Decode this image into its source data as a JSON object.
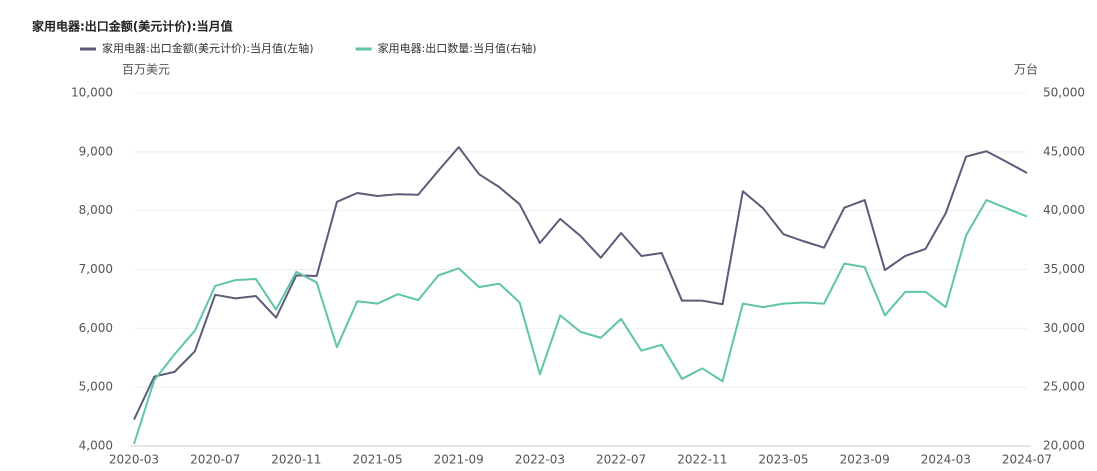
{
  "chart_data": {
    "type": "line",
    "title": "家用电器:出口金额(美元计价):当月值",
    "y_label": "百万美元",
    "y2_label": "万台",
    "categories": [
      "2020-03",
      null,
      null,
      null,
      "2020-07",
      null,
      null,
      null,
      "2020-11",
      null,
      null,
      null,
      "2021-05",
      null,
      null,
      null,
      "2021-09",
      null,
      null,
      null,
      "2022-03",
      null,
      null,
      null,
      "2022-07",
      null,
      null,
      null,
      "2022-11",
      null,
      null,
      null,
      "2023-05",
      null,
      null,
      null,
      "2023-09",
      null,
      null,
      null,
      "2024-03",
      null,
      null,
      null,
      "2024-07"
    ],
    "series": [
      {
        "name": "家用电器:出口金额(美元计价):当月值(左轴)",
        "color": "#5b5d78",
        "axis": "y",
        "values": [
          4450,
          5180,
          5260,
          5610,
          6570,
          6510,
          6550,
          6180,
          6900,
          6890,
          8150,
          8300,
          8250,
          8280,
          8270,
          8680,
          9080,
          8620,
          8400,
          8110,
          7450,
          7860,
          7570,
          7200,
          7620,
          7230,
          7280,
          6470,
          6470,
          6410,
          8330,
          8040,
          7600,
          7480,
          7370,
          8050,
          8180,
          6990,
          7230,
          7350,
          7960,
          8920,
          9010,
          8830,
          8640
        ]
      },
      {
        "name": "家用电器:出口数量:当月值(右轴)",
        "color": "#5fc4aa",
        "axis": "y2",
        "values": [
          20170,
          25600,
          27800,
          29800,
          33600,
          34100,
          34200,
          31600,
          34800,
          33900,
          28400,
          32300,
          32100,
          32900,
          32400,
          34500,
          35100,
          33500,
          33800,
          32200,
          26100,
          31100,
          29700,
          29200,
          30800,
          28100,
          28600,
          25700,
          26600,
          25500,
          32100,
          31800,
          32100,
          32200,
          32100,
          35500,
          35200,
          31100,
          33100,
          33100,
          31800,
          37900,
          40900,
          40200,
          39500
        ]
      }
    ],
    "ylim": [
      4000,
      10000
    ],
    "yticks": [
      {
        "value": 4000,
        "label": "4,000"
      },
      {
        "value": 5000,
        "label": "5,000"
      },
      {
        "value": 6000,
        "label": "6,000"
      },
      {
        "value": 7000,
        "label": "7,000"
      },
      {
        "value": 8000,
        "label": "8,000"
      },
      {
        "value": 9000,
        "label": "9,000"
      },
      {
        "value": 10000,
        "label": "10,000"
      }
    ],
    "y2lim": [
      20000,
      50000
    ],
    "y2ticks": [
      {
        "value": 20000,
        "label": "20,000"
      },
      {
        "value": 25000,
        "label": "25,000"
      },
      {
        "value": 30000,
        "label": "30,000"
      },
      {
        "value": 35000,
        "label": "35,000"
      },
      {
        "value": 40000,
        "label": "40,000"
      },
      {
        "value": 45000,
        "label": "45,000"
      },
      {
        "value": 50000,
        "label": "50,000"
      }
    ],
    "grid": true,
    "legend": "top"
  }
}
